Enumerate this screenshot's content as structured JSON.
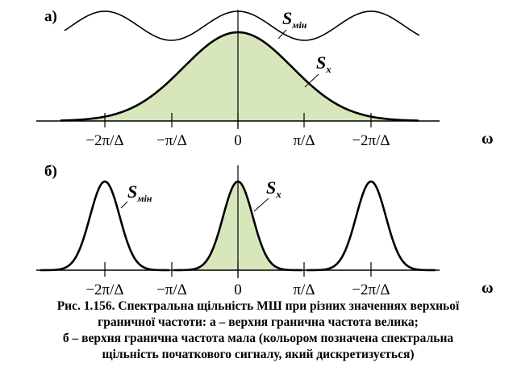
{
  "panel_a": {
    "label": "а)",
    "s_min": {
      "symbol": "S",
      "subscript": "мін"
    },
    "s_x": {
      "symbol": "S",
      "subscript": "x"
    },
    "axis_ticks": [
      "−2π/Δ",
      "−π/Δ",
      "0",
      "π/Δ",
      "−2π/Δ"
    ],
    "axis_label": "ω"
  },
  "panel_b": {
    "label": "б)",
    "s_min": {
      "symbol": "S",
      "subscript": "мін"
    },
    "s_x": {
      "symbol": "S",
      "subscript": "x"
    },
    "axis_ticks": [
      "−2π/Δ",
      "−π/Δ",
      "0",
      "π/Δ",
      "−2π/Δ"
    ],
    "axis_label": "ω"
  },
  "caption": [
    "Рис. 1.156. Спектральна щільність МШ при різних  значеннях верхньої",
    "граничної частоти: а – верхня гранична частота велика;",
    "б – верхня гранична частота мала (кольором позначена спектральна",
    "щільність початкового сигналу, який дискретизується)"
  ]
}
